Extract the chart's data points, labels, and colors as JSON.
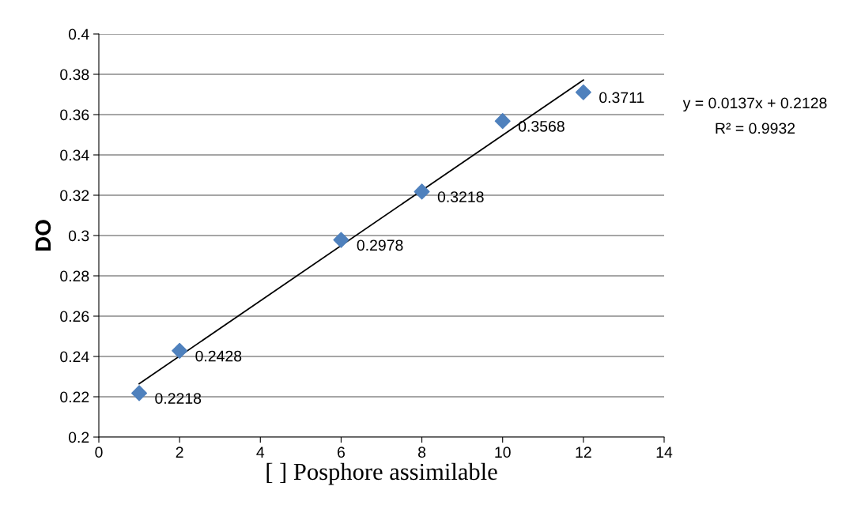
{
  "chart_data": {
    "type": "scatter",
    "xlabel": "[ ] Posphore assimilable",
    "ylabel": "DO",
    "series": [
      {
        "color": "#4f81bd",
        "marker": "diamond",
        "x": [
          1,
          2,
          6,
          8,
          10,
          12
        ],
        "values": [
          0.2218,
          0.2428,
          0.2978,
          0.3218,
          0.3568,
          0.3711
        ],
        "value_labels": [
          "0.2218",
          "0.2428",
          "0.2978",
          "0.3218",
          "0.3568",
          "0.3711"
        ]
      },
      {
        "type": "line",
        "color": "#000000",
        "marker": "none",
        "line_style": "solid",
        "x": [
          1,
          12
        ],
        "values": [
          0.2265,
          0.3772
        ]
      }
    ],
    "xlim": [
      0,
      14
    ],
    "xticks": [
      0,
      2,
      4,
      6,
      8,
      10,
      12,
      14
    ],
    "ylim": [
      0.2,
      0.4
    ],
    "yticks": [
      0.2,
      0.22,
      0.24,
      0.26,
      0.28,
      0.3,
      0.32,
      0.34,
      0.36,
      0.38,
      0.4
    ],
    "grid": "y",
    "legend": false,
    "annotations": [
      "y = 0.0137x + 0.2128",
      "R² = 0.9932"
    ]
  }
}
